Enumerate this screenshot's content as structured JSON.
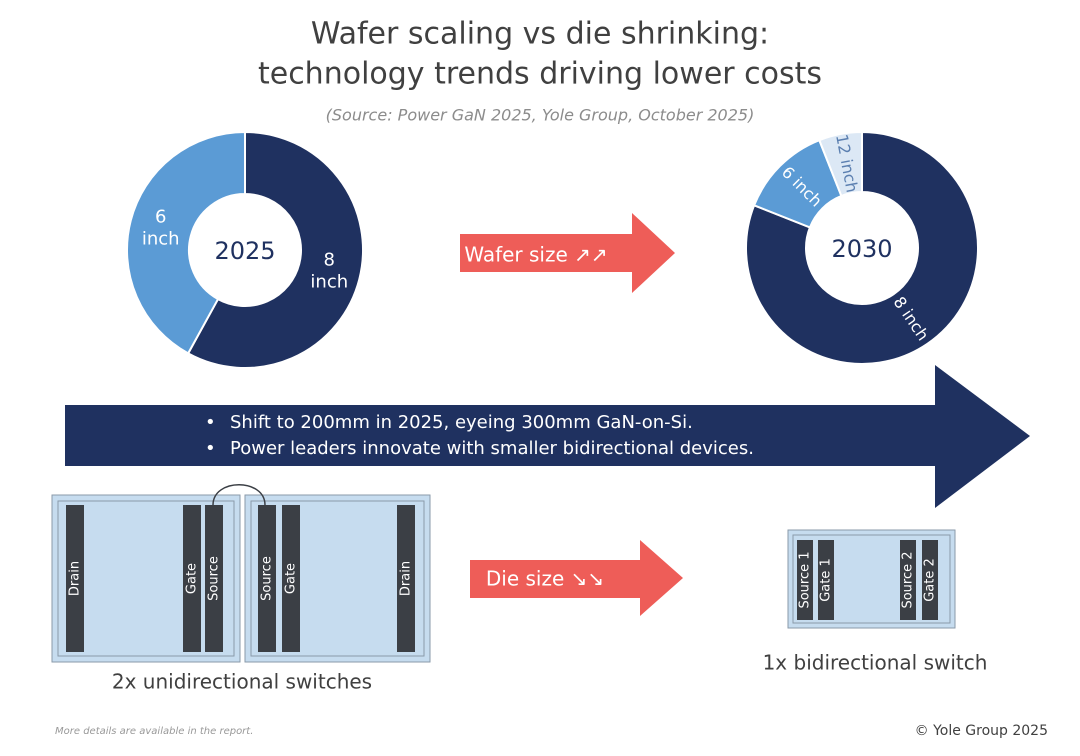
{
  "title_lines": [
    "Wafer scaling vs die shrinking:",
    "technology trends driving lower costs"
  ],
  "source": "(Source: Power GaN 2025, Yole Group, October 2025)",
  "donuts": [
    {
      "center_label": "2025",
      "segments": [
        {
          "label_lines": [
            "8",
            "inch"
          ],
          "value": 58,
          "color": "#1f3160"
        },
        {
          "label_lines": [
            "6",
            "inch"
          ],
          "value": 42,
          "color": "#5b9bd5"
        }
      ]
    },
    {
      "center_label": "2030",
      "segments": [
        {
          "label_lines": [
            "8 inch"
          ],
          "value": 81,
          "color": "#1f3160"
        },
        {
          "label_lines": [
            "6 inch"
          ],
          "value": 13,
          "color": "#5b9bd5"
        },
        {
          "label_lines": [
            "12 inch"
          ],
          "value": 6,
          "color": "#dce8f5"
        }
      ]
    }
  ],
  "wafer_arrow": "Wafer size ↗↗",
  "banner_bullets": [
    "Shift to 200mm in 2025, eyeing 300mm GaN-on-Si.",
    "Power leaders innovate with smaller bidirectional devices."
  ],
  "die_arrow": "Die size ↘↘",
  "left_dies": {
    "pins": [
      "Drain",
      "Gate",
      "Source",
      "Source",
      "Gate",
      "Drain"
    ],
    "caption": "2x unidirectional switches"
  },
  "right_die": {
    "pins": [
      "Source 1",
      "Gate 1",
      "Source 2",
      "Gate 2"
    ],
    "caption": "1x bidirectional switch"
  },
  "footer_note": "More details are available in the report.",
  "copyright": "© Yole Group 2025"
}
